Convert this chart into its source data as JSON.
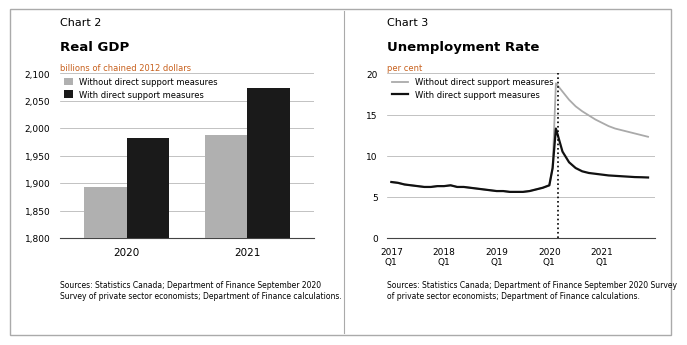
{
  "chart2": {
    "title_line1": "Chart 2",
    "title_line2": "Real GDP",
    "ylabel": "billions of chained 2012 dollars",
    "ylim": [
      1800,
      2100
    ],
    "yticks": [
      1800,
      1850,
      1900,
      1950,
      2000,
      2050,
      2100
    ],
    "ytick_labels": [
      "1,800",
      "1,850",
      "1,900",
      "1,950",
      "2,000",
      "2,050",
      "2,100"
    ],
    "categories": [
      "2020",
      "2021"
    ],
    "without_support": [
      1893,
      1988
    ],
    "with_support": [
      1982,
      2073
    ],
    "bar_color_without": "#b0b0b0",
    "bar_color_with": "#1a1a1a",
    "legend_without": "Without direct support measures",
    "legend_with": "With direct support measures",
    "source": "Sources: Statistics Canada; Department of Finance September 2020\nSurvey of private sector economists; Department of Finance calculations."
  },
  "chart3": {
    "title_line1": "Chart 3",
    "title_line2": "Unemployment Rate",
    "ylabel": "per cent",
    "ylim": [
      0,
      20
    ],
    "yticks": [
      0,
      5,
      10,
      15,
      20
    ],
    "ytick_labels": [
      "0",
      "5",
      "10",
      "15",
      "20"
    ],
    "x_labels": [
      "2017\nQ1",
      "2018\nQ1",
      "2019\nQ1",
      "2020\nQ1",
      "2021\nQ1"
    ],
    "x_positions": [
      0,
      4,
      8,
      12,
      16
    ],
    "without_x": [
      0,
      0.5,
      1,
      1.5,
      2,
      2.5,
      3,
      3.5,
      4,
      4.5,
      5,
      5.5,
      6,
      6.5,
      7,
      7.5,
      8,
      8.5,
      9,
      9.5,
      10,
      10.5,
      11,
      11.5,
      12,
      12.25,
      12.5,
      13,
      13.5,
      14,
      14.5,
      15,
      15.5,
      16,
      16.5,
      17,
      17.5,
      18,
      18.5,
      19,
      19.5
    ],
    "without_y": [
      6.8,
      6.7,
      6.5,
      6.4,
      6.3,
      6.2,
      6.2,
      6.3,
      6.3,
      6.4,
      6.2,
      6.2,
      6.1,
      6.0,
      5.9,
      5.8,
      5.7,
      5.7,
      5.6,
      5.6,
      5.6,
      5.7,
      5.9,
      6.1,
      6.4,
      8.5,
      18.8,
      17.8,
      16.8,
      16.0,
      15.4,
      14.9,
      14.4,
      14.0,
      13.6,
      13.3,
      13.1,
      12.9,
      12.7,
      12.5,
      12.3
    ],
    "with_x": [
      0,
      0.5,
      1,
      1.5,
      2,
      2.5,
      3,
      3.5,
      4,
      4.5,
      5,
      5.5,
      6,
      6.5,
      7,
      7.5,
      8,
      8.5,
      9,
      9.5,
      10,
      10.5,
      11,
      11.5,
      12,
      12.25,
      12.5,
      13,
      13.5,
      14,
      14.5,
      15,
      15.5,
      16,
      16.5,
      17,
      17.5,
      18,
      18.5,
      19,
      19.5
    ],
    "with_y": [
      6.8,
      6.7,
      6.5,
      6.4,
      6.3,
      6.2,
      6.2,
      6.3,
      6.3,
      6.4,
      6.2,
      6.2,
      6.1,
      6.0,
      5.9,
      5.8,
      5.7,
      5.7,
      5.6,
      5.6,
      5.6,
      5.7,
      5.9,
      6.1,
      6.4,
      8.5,
      13.3,
      10.5,
      9.2,
      8.5,
      8.1,
      7.9,
      7.8,
      7.7,
      7.6,
      7.55,
      7.5,
      7.45,
      7.4,
      7.38,
      7.35
    ],
    "vline_x": 12.65,
    "color_without": "#aaaaaa",
    "color_with": "#111111",
    "legend_without": "Without direct support measures",
    "legend_with": "With direct support measures",
    "source": "Sources: Statistics Canada; Department of Finance September 2020 Survey\nof private sector economists; Department of Finance calculations."
  },
  "bg_color": "#ffffff",
  "border_color": "#aaaaaa",
  "label_color": "#c8611e"
}
